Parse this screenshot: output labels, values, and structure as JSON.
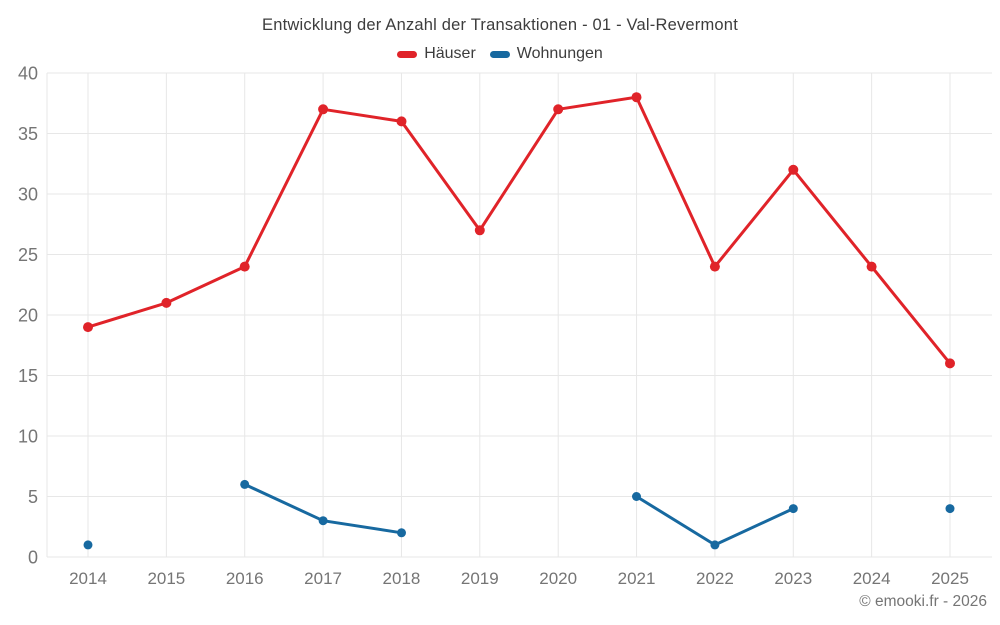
{
  "chart_data": {
    "type": "line",
    "title": "Entwicklung der Anzahl der Transaktionen - 01 - Val-Revermont",
    "x": [
      2014,
      2015,
      2016,
      2017,
      2018,
      2019,
      2020,
      2021,
      2022,
      2023,
      2024,
      2025
    ],
    "series": [
      {
        "name": "Häuser",
        "color": "#e02329",
        "values": [
          19,
          21,
          24,
          37,
          36,
          27,
          37,
          38,
          24,
          32,
          24,
          16
        ]
      },
      {
        "name": "Wohnungen",
        "color": "#1769a0",
        "values": [
          1,
          null,
          6,
          3,
          2,
          null,
          null,
          5,
          1,
          4,
          null,
          4
        ]
      }
    ],
    "ylim": [
      0,
      40
    ],
    "yticks": [
      0,
      5,
      10,
      15,
      20,
      25,
      30,
      35,
      40
    ],
    "xlabel": "",
    "ylabel": "",
    "grid": true,
    "legend_position": "top",
    "grid_color": "#e7e7e7",
    "tick_color": "#757575",
    "title_color": "#3d3d3d"
  },
  "footer": {
    "copyright": "© emooki.fr - 2026"
  }
}
